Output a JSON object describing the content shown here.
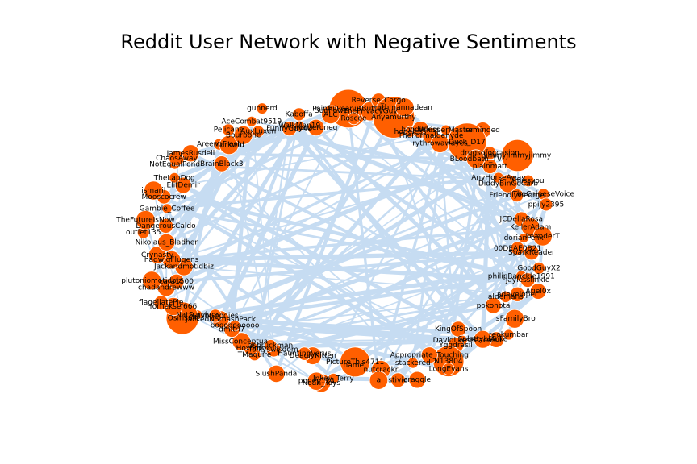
{
  "title": "Reddit User Network with Negative Sentiments",
  "colors": {
    "node": "#FF5F00",
    "edge": "#C6DCF2",
    "background": "#ffffff",
    "text": "#000000"
  },
  "nodes": [
    "PainfulPeanutButter",
    "Roscoe",
    "ThePrivacyGuy",
    "Reverse_Cargo",
    "Anyamurthy",
    "uthmannadean",
    "hopeless",
    "hoodieless",
    "TheFormaldehyde",
    "WhisperMaster",
    "rythrowawayes",
    "reminded",
    "Duck_D17",
    "BLoodbath_TV",
    "drugsofoccasion",
    "plainmatt",
    "Jimmyjimmyjimmy",
    "AnyHorseAway",
    "DiddyBinGoCarb",
    "imissyou",
    "FriendlyGeorge",
    "TheChineseVoice",
    "ppijy2395",
    "JCDellaRosa",
    "KellerAdam",
    "LeanderT",
    "dorianFelix",
    "00DEAE0B21",
    "SparkReader",
    "GoodGuyX2",
    "philipRanckle1991",
    "jaylesslinkle",
    "Ariel0x",
    "adeveloper",
    "aldemans",
    "pokonota",
    "IsFamilyBro",
    "teokumbar",
    "Aul",
    "Splattyblanke",
    "KingOfSpoon",
    "DavidlikesPeace",
    "Yggdrasil",
    "N13804",
    "LongEvans",
    "Appropriate_Touching",
    "stackered",
    "craggle",
    "stivie",
    "nutcrackr",
    "a",
    "name",
    "PictureThis4711",
    "Inkey_Terry",
    "Noah_Toys",
    "popey123",
    "DeadlyKitten",
    "HauntingVerus",
    "SlushPanda",
    "folkyswisdom",
    "asbruckman",
    "TMaguire",
    "Hoxomo",
    "MissConceptual",
    "dmitri7",
    "boooooooooo",
    "JackedNSmashPack",
    "LushGoodies",
    "NatSurvivor",
    "Osiris64",
    "forheksel666",
    "flagellatePie",
    "chadandrewww",
    "cara1500",
    "plutoniomotidbiz",
    "Jackandmotidbiz",
    "hadwigFlugens",
    "Crynasty",
    "Nikolaus_Bladher",
    "outlet135",
    "DangerousCaldo",
    "TheFutureIsNow",
    "Gamble_Coffee",
    "Mooscocrew",
    "ismaril",
    "ElifDemir",
    "TheLapDog",
    "NotEqualPond",
    "ChaosAway",
    "JamesRusdell",
    "BrainBlack3",
    "AreenoFresh",
    "Murkwid",
    "Pelicans",
    "Bourbone",
    "AceCombat9519",
    "AuxLuxen",
    "gunnerd",
    "FunnyGuy4U",
    "WalkMan19",
    "Kaboffa",
    "nonzeroneg",
    "Sunflower",
    "ALC"
  ],
  "edge_count": 180
}
